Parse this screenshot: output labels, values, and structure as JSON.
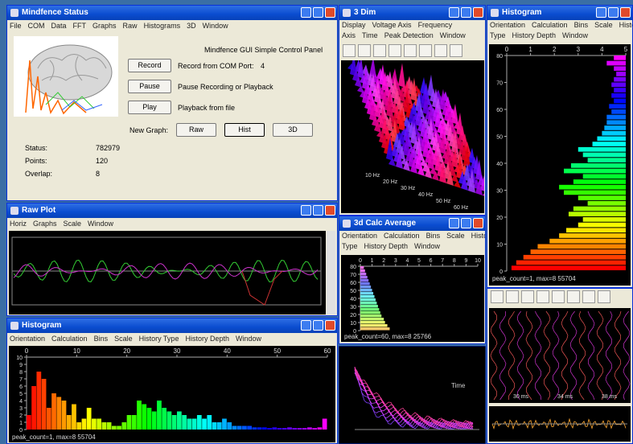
{
  "status_window": {
    "title": "Mindfence Status",
    "menu": [
      "File",
      "COM",
      "Data",
      "FFT",
      "Graphs",
      "Raw",
      "Histograms",
      "3D",
      "Window"
    ],
    "panel_title": "Mindfence GUI Simple Control Panel",
    "controls": [
      {
        "button": "Record",
        "description": "Record from COM Port:",
        "port": "4"
      },
      {
        "button": "Pause",
        "description": "Pause Recording or Playback"
      },
      {
        "button": "Play",
        "description": "Playback from file"
      }
    ],
    "new_graph_label": "New Graph:",
    "graph_buttons": [
      "Raw",
      "Hist",
      "3D"
    ],
    "fields": [
      {
        "label": "Status:",
        "value": "782979"
      },
      {
        "label": "Points:",
        "value": "120"
      },
      {
        "label": "Overlap:",
        "value": "8"
      }
    ]
  },
  "raw_window": {
    "title": "Raw Plot",
    "menu": [
      "Horiz",
      "Graphs",
      "Scale",
      "Window"
    ]
  },
  "hist_window": {
    "title": "Histogram",
    "menu": [
      "Orientation",
      "Calculation",
      "Bins",
      "Scale",
      "History Type",
      "History Depth",
      "Window"
    ],
    "xlim": [
      0,
      60
    ],
    "xticks": [
      0,
      10,
      20,
      30,
      40,
      50,
      60
    ],
    "ylim": [
      0,
      10
    ],
    "yticks": [
      0,
      1,
      2,
      3,
      4,
      5,
      6,
      7,
      8,
      9,
      10
    ],
    "values": [
      2,
      6,
      8,
      7,
      3,
      5,
      4.5,
      4,
      2,
      3.5,
      1,
      1.5,
      3,
      1.5,
      1.5,
      1,
      1,
      0.5,
      0.5,
      1,
      2,
      2,
      4,
      3.5,
      3,
      2.5,
      4,
      3,
      2.5,
      2,
      2.5,
      2,
      1.5,
      1.5,
      2,
      1.5,
      2,
      1,
      1,
      1.5,
      1,
      0.5,
      0.5,
      0.5,
      0.5,
      0.3,
      0.3,
      0.3,
      0.2,
      0.3,
      0.2,
      0.2,
      0.3,
      0.2,
      0.2,
      0.2,
      0.3,
      0.2,
      0.3,
      1.5
    ],
    "footer": "peak_count=1, max=8 55704"
  },
  "surface_window": {
    "title": "3 Dim",
    "menu": [
      "Display",
      "Voltage Axis",
      "Frequency Axis",
      "Time",
      "Peak Detection",
      "Window"
    ],
    "axis_labels": [
      "10 Hz",
      "20 Hz",
      "30 Hz",
      "40 Hz",
      "50 Hz",
      "60 Hz"
    ]
  },
  "avg_window": {
    "title": "3d Calc Average",
    "menu": [
      "Orientation",
      "Calculation",
      "Bins",
      "Scale",
      "History Type",
      "History Depth",
      "Window"
    ],
    "xlim": [
      0,
      10
    ],
    "xticks": [
      0,
      1,
      2,
      3,
      4,
      5,
      6,
      7,
      8,
      9,
      10
    ],
    "ylim": [
      0,
      80
    ],
    "yticks": [
      0,
      10,
      20,
      30,
      40,
      50,
      60,
      70,
      80
    ],
    "values": [
      2.5,
      2.3,
      2.1,
      2,
      1.8,
      1.7,
      1.6,
      1.5,
      1.4,
      1.3,
      1.2,
      1.1,
      1,
      0.9,
      0.8,
      0.7,
      0.6,
      0.5,
      0.4,
      0.3
    ],
    "footer": "peak_count=60, max=8 25766"
  },
  "spectrum_panel": {
    "label": "Time"
  },
  "right_hist_window": {
    "title": "Histogram",
    "menu": [
      "Orientation",
      "Calculation",
      "Bins",
      "Scale",
      "History Type",
      "History Depth",
      "Window"
    ],
    "xlim": [
      0,
      5
    ],
    "xticks": [
      0,
      1,
      2,
      3,
      4,
      5
    ],
    "ylim": [
      0,
      80
    ],
    "yticks": [
      0,
      10,
      20,
      30,
      40,
      50,
      60,
      70,
      80
    ],
    "values": [
      4.8,
      4.6,
      4.3,
      4,
      3.7,
      3.2,
      2.8,
      2.5,
      2,
      1.8,
      2.4,
      2.2,
      1.6,
      2,
      2.6,
      2.8,
      2.2,
      1.8,
      2.6,
      2.3,
      1.6,
      1.8,
      2,
      1.4,
      1.2,
      1,
      0.9,
      0.8,
      0.8,
      0.6,
      0.7,
      0.5,
      0.6,
      0.5,
      0.6,
      0.5,
      0.4,
      0.5,
      0.8,
      0.5
    ],
    "footer": "peak_count=1, max=8 55704"
  },
  "trace_window": {
    "axis_labels": [
      "30 ms",
      "34 ms",
      "38 ms"
    ]
  }
}
